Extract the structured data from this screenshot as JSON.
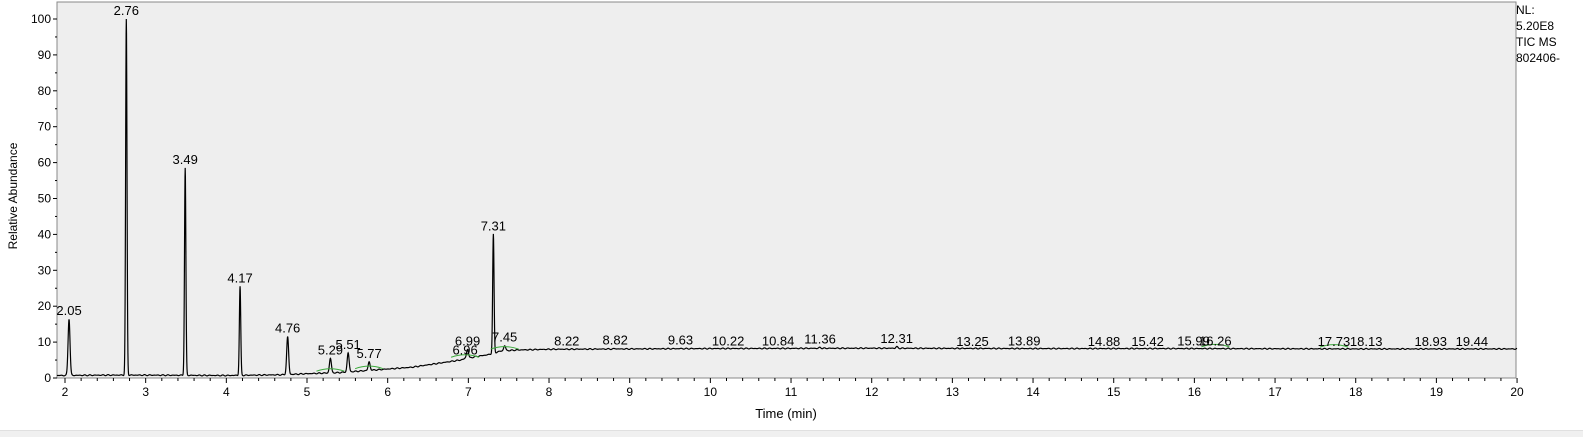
{
  "info": {
    "nl_label": "NL:",
    "nl_value": "5.20E8",
    "scan_filter": "TIC  MS",
    "file_name": "802406-"
  },
  "chart_data": {
    "type": "line",
    "title": "",
    "xlabel": "Time (min)",
    "ylabel": "Relative Abundance",
    "xlim": [
      1.9,
      20.0
    ],
    "ylim": [
      0,
      100
    ],
    "xticks": [
      2,
      3,
      4,
      5,
      6,
      7,
      8,
      9,
      10,
      11,
      12,
      13,
      14,
      15,
      16,
      17,
      18,
      19,
      20
    ],
    "yticks": [
      0,
      10,
      20,
      30,
      40,
      50,
      60,
      70,
      80,
      90,
      100
    ],
    "colors": {
      "trace": "#000000",
      "plot_bg": "#eeeeee",
      "baseline_mark": "#3caa3c"
    },
    "peaks": [
      {
        "label": "2.05",
        "x": 2.05,
        "y": 16.5
      },
      {
        "label": "2.76",
        "x": 2.76,
        "y": 100
      },
      {
        "label": "3.49",
        "x": 3.49,
        "y": 58.5
      },
      {
        "label": "4.17",
        "x": 4.17,
        "y": 25.5
      },
      {
        "label": "4.76",
        "x": 4.76,
        "y": 11.5
      },
      {
        "label": "5.29",
        "x": 5.29,
        "y": 5.5
      },
      {
        "label": "5.51",
        "x": 5.51,
        "y": 7.0
      },
      {
        "label": "5.77",
        "x": 5.77,
        "y": 4.5
      },
      {
        "label": "6.96",
        "x": 6.96,
        "y": 5.5
      },
      {
        "label": "6.99",
        "x": 6.99,
        "y": 8.0
      },
      {
        "label": "7.31",
        "x": 7.31,
        "y": 40.0
      },
      {
        "label": "7.45",
        "x": 7.45,
        "y": 9.0
      },
      {
        "label": "8.22",
        "x": 8.22,
        "y": 8.0
      },
      {
        "label": "8.82",
        "x": 8.82,
        "y": 8.2
      },
      {
        "label": "9.63",
        "x": 9.63,
        "y": 8.2
      },
      {
        "label": "10.22",
        "x": 10.22,
        "y": 8.0
      },
      {
        "label": "10.84",
        "x": 10.84,
        "y": 8.0
      },
      {
        "label": "11.36",
        "x": 11.36,
        "y": 8.5
      },
      {
        "label": "12.31",
        "x": 12.31,
        "y": 8.7
      },
      {
        "label": "13.25",
        "x": 13.25,
        "y": 7.8
      },
      {
        "label": "13.89",
        "x": 13.89,
        "y": 8.0
      },
      {
        "label": "14.88",
        "x": 14.88,
        "y": 7.8
      },
      {
        "label": "15.42",
        "x": 15.42,
        "y": 7.8
      },
      {
        "label": "15.99",
        "x": 15.99,
        "y": 8.0
      },
      {
        "label": "16.26",
        "x": 16.26,
        "y": 8.0
      },
      {
        "label": "17.73",
        "x": 17.73,
        "y": 7.8
      },
      {
        "label": "18.13",
        "x": 18.13,
        "y": 7.8
      },
      {
        "label": "18.93",
        "x": 18.93,
        "y": 7.8
      },
      {
        "label": "19.44",
        "x": 19.44,
        "y": 7.8
      }
    ],
    "baseline": [
      [
        1.9,
        0.7
      ],
      [
        2.5,
        0.8
      ],
      [
        3.0,
        0.8
      ],
      [
        4.0,
        0.7
      ],
      [
        4.7,
        0.9
      ],
      [
        5.0,
        1.2
      ],
      [
        5.4,
        1.5
      ],
      [
        5.7,
        2.0
      ],
      [
        6.0,
        2.5
      ],
      [
        6.3,
        3.0
      ],
      [
        6.6,
        4.0
      ],
      [
        6.9,
        5.0
      ],
      [
        7.1,
        6.0
      ],
      [
        7.25,
        6.5
      ],
      [
        7.4,
        7.5
      ],
      [
        7.6,
        7.8
      ],
      [
        8.0,
        8.0
      ],
      [
        9.0,
        8.1
      ],
      [
        10.0,
        8.2
      ],
      [
        12.0,
        8.3
      ],
      [
        14.0,
        8.2
      ],
      [
        16.0,
        8.2
      ],
      [
        18.0,
        8.1
      ],
      [
        20.0,
        8.1
      ]
    ],
    "baseline_marks": [
      5.29,
      5.77,
      6.96,
      7.45,
      16.26,
      17.73
    ]
  }
}
